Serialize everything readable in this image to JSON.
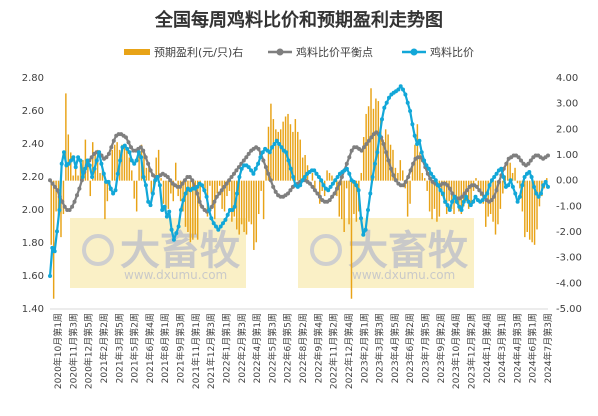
{
  "chart_data": {
    "type": "line",
    "title": "全国每周鸡料比价和预期盈利走势图",
    "legend": [
      "预期盈利(元/只)右",
      "鸡料比价平衡点",
      "鸡料比价"
    ],
    "watermark": {
      "brand": "大畜牧",
      "site": "www.dxumu.com"
    },
    "colors": {
      "profit": "#e8a317",
      "balance": "#7f7f7f",
      "ratio": "#12a7d8",
      "watermark_bg": "#faf0c6"
    },
    "left_axis": {
      "min": 1.4,
      "max": 2.8,
      "ticks": [
        "1.40",
        "1.60",
        "1.80",
        "2.00",
        "2.20",
        "2.40",
        "2.60",
        "2.80"
      ]
    },
    "right_axis": {
      "min": -5,
      "max": 4,
      "ticks": [
        "-5.00",
        "-4.00",
        "-3.00",
        "-2.00",
        "-1.00",
        "0.00",
        "1.00",
        "2.00",
        "3.00",
        "4.00"
      ]
    },
    "x_labels": [
      "2020年10月第1周",
      "2020年11月第3周",
      "2020年12月第5周",
      "2021年2月第2周",
      "2021年3月第5周",
      "2021年5月第2周",
      "2021年6月第4周",
      "2021年8月第1周",
      "2021年9月第3周",
      "2021年11月第1周",
      "2021年12月第3周",
      "2022年1月第1周",
      "2022年2月第3周",
      "2022年4月第1周",
      "2022年5月第3周",
      "2022年6月第5周",
      "2022年8月第2周",
      "2022年9月第4周",
      "2022年11月第2周",
      "2022年12月第4周",
      "2023年2月第1周",
      "2023年3月第3周",
      "2023年4月第5周",
      "2023年6月第2周",
      "2023年7月第5周",
      "2023年9月第2周",
      "2023年10月第4周",
      "2023年12月第2周",
      "2024年1月第4周",
      "2024年3月第1周",
      "2024年4月第3周",
      "2024年6月第1周",
      "2024年7月第3周"
    ],
    "series": [
      {
        "name": "预期盈利(元/只)右",
        "type": "bar",
        "axis": "right",
        "values": [
          -2.5,
          -4.6,
          -1.2,
          -1.5,
          -2.2,
          -1.3,
          3.4,
          1.8,
          1.1,
          0.2,
          0.5,
          0.2,
          0.6,
          0.8,
          1.6,
          0.8,
          -0.6,
          1.5,
          1.0,
          1.2,
          0.3,
          0.4,
          -1.5,
          -0.8,
          -0.4,
          1.2,
          1.4,
          1.5,
          1.2,
          1.4,
          1.3,
          1.2,
          0.9,
          0.4,
          -0.7,
          -1.2,
          1.0,
          1.4,
          1.2,
          0.5,
          0.7,
          -0.5,
          -0.3,
          0.9,
          1.2,
          0.1,
          -0.9,
          -1.3,
          -1.1,
          -0.5,
          -0.8,
          0.7,
          -0.6,
          -0.8,
          -1.2,
          -1.8,
          -2.0,
          -2.4,
          -2.3,
          -2.1,
          -2.3,
          -1.0,
          0.0,
          -0.3,
          -1.4,
          -0.2,
          -1.1,
          -1.5,
          -0.5,
          -0.2,
          -1.1,
          -1.2,
          -0.6,
          -0.4,
          -1.6,
          -1.4,
          -1.9,
          -2.1,
          -1.7,
          -2.0,
          -2.1,
          -1.6,
          -1.7,
          -2.7,
          -2.4,
          -1.3,
          -0.4,
          -1.5,
          0.6,
          2.1,
          3.0,
          2.4,
          2.0,
          1.9,
          2.0,
          2.3,
          2.5,
          2.6,
          2.2,
          1.9,
          2.4,
          1.9,
          1.6,
          0.9,
          1.0,
          0.6,
          0.0,
          0.3,
          -0.3,
          0.0,
          -0.9,
          -0.4,
          -0.6,
          0.4,
          0.3,
          0.2,
          -0.1,
          -0.6,
          -1.4,
          -1.5,
          -2.0,
          -0.3,
          -1.7,
          -4.6,
          -1.3,
          -1.6,
          -1.2,
          0.3,
          1.7,
          2.6,
          2.9,
          3.6,
          2.8,
          3.2,
          3.1,
          2.4,
          1.6,
          2.0,
          1.8,
          1.4,
          1.2,
          0.5,
          0.3,
          0.8,
          0.4,
          -0.3,
          -1.4,
          -0.9,
          0.6,
          1.4,
          2.2,
          1.1,
          0.3,
          0.1,
          -0.4,
          -1.2,
          -1.5,
          -1.1,
          -1.6,
          -1.4,
          -0.6,
          -0.9,
          -1.3,
          -0.8,
          -1.1,
          -1.3,
          -0.9,
          -1.2,
          -1.3,
          -1.0,
          -0.8,
          -1.1,
          -1.0,
          -0.4,
          0.1,
          -0.2,
          -0.6,
          -0.9,
          -1.8,
          -1.4,
          -1.3,
          -1.6,
          -2.1,
          -1.7,
          -1.1,
          -0.5,
          0.2,
          0.8,
          0.7,
          0.3,
          0.5,
          -0.1,
          -0.3,
          -1.2,
          -2.2,
          -2.0,
          -2.3,
          -2.4,
          -2.5,
          -1.9,
          -1.0,
          -0.6,
          -0.3,
          0.1
        ]
      },
      {
        "name": "鸡料比价平衡点",
        "type": "line",
        "axis": "left",
        "values": [
          2.18,
          2.16,
          2.14,
          2.12,
          2.08,
          2.05,
          2.02,
          2.0,
          2.0,
          2.02,
          2.05,
          2.09,
          2.13,
          2.18,
          2.23,
          2.27,
          2.3,
          2.32,
          2.34,
          2.35,
          2.35,
          2.33,
          2.31,
          2.32,
          2.34,
          2.38,
          2.42,
          2.45,
          2.46,
          2.46,
          2.45,
          2.44,
          2.41,
          2.38,
          2.36,
          2.36,
          2.37,
          2.38,
          2.36,
          2.32,
          2.28,
          2.24,
          2.21,
          2.2,
          2.2,
          2.21,
          2.22,
          2.21,
          2.2,
          2.18,
          2.16,
          2.15,
          2.14,
          2.14,
          2.16,
          2.18,
          2.2,
          2.2,
          2.18,
          2.14,
          2.1,
          2.05,
          2.02,
          2.0,
          1.99,
          2.0,
          2.02,
          2.05,
          2.08,
          2.1,
          2.12,
          2.14,
          2.16,
          2.18,
          2.2,
          2.22,
          2.24,
          2.26,
          2.28,
          2.3,
          2.32,
          2.34,
          2.36,
          2.37,
          2.38,
          2.37,
          2.34,
          2.3,
          2.26,
          2.22,
          2.18,
          2.14,
          2.11,
          2.09,
          2.08,
          2.08,
          2.09,
          2.1,
          2.12,
          2.14,
          2.15,
          2.16,
          2.17,
          2.18,
          2.18,
          2.17,
          2.16,
          2.14,
          2.12,
          2.1,
          2.08,
          2.06,
          2.05,
          2.05,
          2.06,
          2.08,
          2.1,
          2.13,
          2.16,
          2.2,
          2.24,
          2.28,
          2.32,
          2.36,
          2.38,
          2.38,
          2.37,
          2.36,
          2.38,
          2.4,
          2.42,
          2.44,
          2.46,
          2.47,
          2.46,
          2.44,
          2.4,
          2.35,
          2.3,
          2.25,
          2.21,
          2.18,
          2.16,
          2.15,
          2.15,
          2.17,
          2.2,
          2.24,
          2.28,
          2.31,
          2.32,
          2.32,
          2.3,
          2.26,
          2.22,
          2.19,
          2.17,
          2.16,
          2.15,
          2.15,
          2.16,
          2.16,
          2.15,
          2.13,
          2.1,
          2.08,
          2.07,
          2.07,
          2.08,
          2.1,
          2.12,
          2.14,
          2.15,
          2.15,
          2.14,
          2.12,
          2.1,
          2.08,
          2.06,
          2.05,
          2.06,
          2.08,
          2.12,
          2.17,
          2.21,
          2.25,
          2.28,
          2.31,
          2.32,
          2.33,
          2.33,
          2.32,
          2.3,
          2.28,
          2.27,
          2.28,
          2.3,
          2.32,
          2.33,
          2.33,
          2.32,
          2.31,
          2.32,
          2.33
        ]
      },
      {
        "name": "鸡料比价",
        "type": "line",
        "axis": "left",
        "values": [
          1.6,
          1.77,
          1.75,
          1.87,
          2.0,
          2.28,
          2.35,
          2.27,
          2.28,
          2.3,
          2.32,
          2.26,
          2.32,
          2.3,
          2.2,
          2.25,
          2.3,
          2.27,
          2.2,
          2.25,
          2.3,
          2.35,
          2.28,
          2.22,
          2.17,
          2.17,
          2.13,
          2.1,
          2.12,
          2.22,
          2.3,
          2.38,
          2.39,
          2.37,
          2.35,
          2.3,
          2.28,
          2.3,
          2.35,
          2.32,
          2.2,
          2.15,
          2.05,
          2.03,
          2.1,
          2.18,
          2.2,
          2.15,
          2.0,
          2.02,
          1.96,
          1.99,
          1.88,
          1.82,
          1.86,
          1.9,
          2.0,
          2.06,
          2.1,
          2.13,
          2.12,
          2.13,
          2.13,
          2.14,
          2.16,
          2.15,
          2.12,
          2.08,
          2.0,
          1.95,
          1.92,
          1.9,
          1.88,
          1.9,
          1.92,
          1.94,
          1.97,
          2.0,
          2.0,
          2.02,
          2.1,
          2.2,
          2.25,
          2.27,
          2.27,
          2.26,
          2.24,
          2.22,
          2.25,
          2.28,
          2.32,
          2.35,
          2.37,
          2.36,
          2.35,
          2.38,
          2.4,
          2.42,
          2.4,
          2.38,
          2.36,
          2.35,
          2.3,
          2.25,
          2.2,
          2.15,
          2.14,
          2.15,
          2.18,
          2.2,
          2.22,
          2.23,
          2.24,
          2.24,
          2.22,
          2.2,
          2.18,
          2.15,
          2.13,
          2.12,
          2.14,
          2.16,
          2.18,
          2.2,
          2.22,
          2.23,
          2.24,
          2.25,
          2.22,
          2.18,
          2.17,
          2.15,
          2.12,
          1.95,
          1.85,
          1.88,
          2.0,
          2.1,
          2.2,
          2.28,
          2.35,
          2.45,
          2.55,
          2.62,
          2.65,
          2.68,
          2.7,
          2.71,
          2.72,
          2.73,
          2.75,
          2.73,
          2.7,
          2.65,
          2.6,
          2.52,
          2.45,
          2.4,
          2.42,
          2.35,
          2.3,
          2.27,
          2.25,
          2.22,
          2.2,
          2.18,
          2.15,
          2.12,
          2.1,
          2.05,
          2.03,
          2.0,
          2.05,
          2.08,
          2.05,
          2.02,
          2.0,
          2.05,
          2.08,
          2.05,
          2.03,
          2.05,
          2.08,
          2.06,
          2.05,
          2.06,
          2.08,
          2.1,
          2.15,
          2.18,
          2.2,
          2.22,
          2.24,
          2.25,
          2.2,
          2.14,
          2.15,
          2.18,
          2.14,
          2.1,
          2.05,
          2.08,
          2.15,
          2.2,
          2.22,
          2.23,
          2.2,
          2.14,
          2.1,
          2.08,
          2.1,
          2.15,
          2.17,
          2.14
        ]
      }
    ]
  }
}
